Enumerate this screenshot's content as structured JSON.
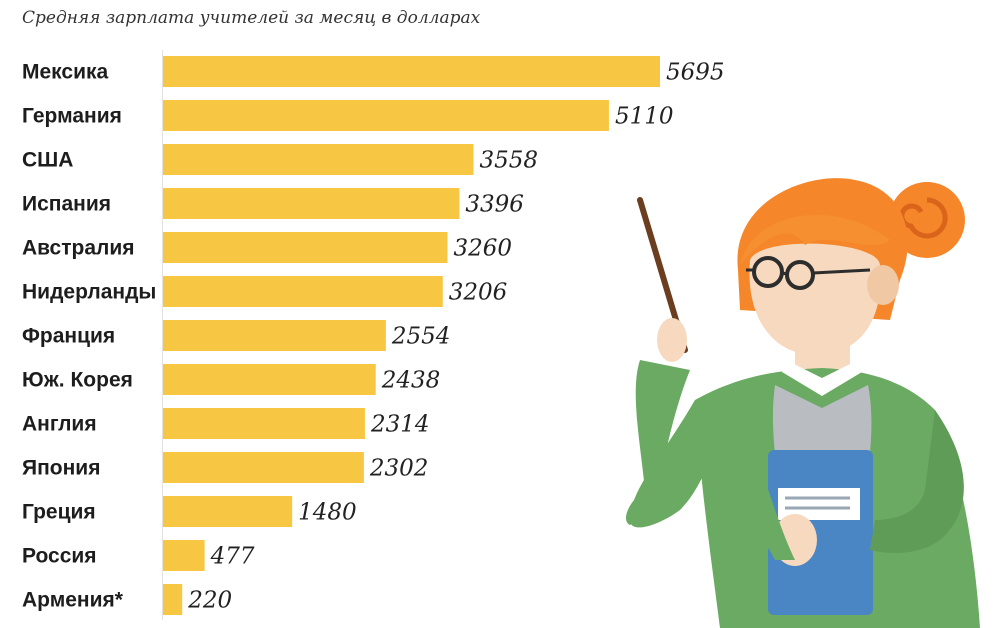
{
  "chart_data": {
    "type": "bar",
    "orientation": "horizontal",
    "title": "Средняя зарплата учителей за месяц в долларах",
    "categories": [
      "Мексика",
      "Германия",
      "США",
      "Испания",
      "Австралия",
      "Нидерланды",
      "Франция",
      "Юж. Корея",
      "Англия",
      "Япония",
      "Греция",
      "Россия",
      "Армения*"
    ],
    "values": [
      5695,
      5110,
      3558,
      3396,
      3260,
      3206,
      2554,
      2438,
      2314,
      2302,
      1480,
      477,
      220
    ],
    "xlim": [
      0,
      5695
    ],
    "grid": false,
    "bar_color": "#f7c744"
  },
  "illustration": {
    "icon": "teacher-with-pointer-icon",
    "hair_color": "#f5862a",
    "sweater_color": "#6aaa62",
    "book_color": "#4a86c4"
  }
}
